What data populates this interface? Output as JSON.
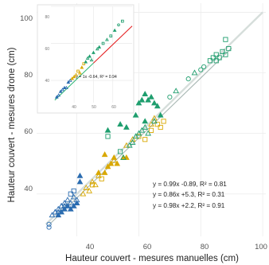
{
  "chart_data": [
    {
      "type": "scatter",
      "xlabel": "Hauteur couvert - mesures manuelles (cm)",
      "ylabel": "Hauteur couvert - mesures drone (cm)",
      "xlim": [
        27,
        101
      ],
      "ylim": [
        26,
        103
      ],
      "xticks": [
        "40",
        "60",
        "80",
        "100"
      ],
      "yticks": [
        "40",
        "60",
        "80",
        "100"
      ],
      "grid": true,
      "colors": {
        "blue": "#2b6cb0",
        "yellow": "#d9a800",
        "green": "#1f9e6e",
        "regression_line": "#a8b7b3",
        "one_to_one": "#d6dedb"
      },
      "equations": [
        "y = 0.99x -0.89, R² = 0.81",
        "y = 0.86x +5.3, R² = 0.31",
        "y = 0.98x +2.2, R² = 0.91"
      ],
      "series": [
        {
          "color": "#2b6cb0",
          "points": [
            {
              "x": 31,
              "y": 29,
              "m": "o"
            },
            {
              "x": 31,
              "y": 30,
              "m": "o"
            },
            {
              "x": 32,
              "y": 33,
              "m": "t"
            },
            {
              "x": 33,
              "y": 34,
              "m": "t"
            },
            {
              "x": 34,
              "y": 33,
              "m": "T"
            },
            {
              "x": 34,
              "y": 35,
              "m": "t"
            },
            {
              "x": 35,
              "y": 34,
              "m": "T"
            },
            {
              "x": 35,
              "y": 36,
              "m": "t"
            },
            {
              "x": 36,
              "y": 35,
              "m": "T"
            },
            {
              "x": 36,
              "y": 37,
              "m": "t"
            },
            {
              "x": 37,
              "y": 36,
              "m": "T"
            },
            {
              "x": 37,
              "y": 38,
              "m": "t"
            },
            {
              "x": 38,
              "y": 35,
              "m": "T"
            },
            {
              "x": 38,
              "y": 37,
              "m": "t"
            },
            {
              "x": 39,
              "y": 36,
              "m": "T"
            },
            {
              "x": 39,
              "y": 39,
              "m": "t"
            },
            {
              "x": 40,
              "y": 37,
              "m": "T"
            },
            {
              "x": 40,
              "y": 38,
              "m": "t"
            },
            {
              "x": 33,
              "y": 34,
              "m": "t"
            },
            {
              "x": 34,
              "y": 34,
              "m": "t"
            },
            {
              "x": 35,
              "y": 36,
              "m": "t"
            },
            {
              "x": 36,
              "y": 36,
              "m": "t"
            },
            {
              "x": 38,
              "y": 40,
              "m": "s"
            },
            {
              "x": 39,
              "y": 41,
              "m": "s"
            },
            {
              "x": 41,
              "y": 44,
              "m": "T"
            },
            {
              "x": 41,
              "y": 46,
              "m": "T"
            }
          ]
        },
        {
          "color": "#d9a800",
          "points": [
            {
              "x": 42,
              "y": 40,
              "m": "t"
            },
            {
              "x": 43,
              "y": 42,
              "m": "t"
            },
            {
              "x": 44,
              "y": 41,
              "m": "t"
            },
            {
              "x": 45,
              "y": 43,
              "m": "s"
            },
            {
              "x": 45,
              "y": 44,
              "m": "t"
            },
            {
              "x": 46,
              "y": 43,
              "m": "t"
            },
            {
              "x": 47,
              "y": 47,
              "m": "T"
            },
            {
              "x": 47,
              "y": 46,
              "m": "t"
            },
            {
              "x": 48,
              "y": 45,
              "m": "s"
            },
            {
              "x": 49,
              "y": 47,
              "m": "T"
            },
            {
              "x": 50,
              "y": 49,
              "m": "T"
            },
            {
              "x": 51,
              "y": 50,
              "m": "T"
            },
            {
              "x": 52,
              "y": 52,
              "m": "T"
            },
            {
              "x": 52,
              "y": 51,
              "m": "t"
            },
            {
              "x": 53,
              "y": 50,
              "m": "T"
            },
            {
              "x": 55,
              "y": 52,
              "m": "T"
            },
            {
              "x": 56,
              "y": 52,
              "m": "T"
            },
            {
              "x": 49,
              "y": 53,
              "m": "T"
            },
            {
              "x": 56,
              "y": 56,
              "m": "t"
            },
            {
              "x": 58,
              "y": 58,
              "m": "t"
            },
            {
              "x": 60,
              "y": 59,
              "m": "s"
            },
            {
              "x": 62,
              "y": 58,
              "m": "s"
            },
            {
              "x": 64,
              "y": 61,
              "m": "s"
            },
            {
              "x": 66,
              "y": 63,
              "m": "s"
            },
            {
              "x": 67,
              "y": 62,
              "m": "s"
            },
            {
              "x": 68,
              "y": 64,
              "m": "s"
            },
            {
              "x": 65,
              "y": 65,
              "m": "t"
            },
            {
              "x": 64,
              "y": 63,
              "m": "t"
            }
          ]
        },
        {
          "color": "#1f9e6e",
          "points": [
            {
              "x": 50,
              "y": 61,
              "m": "T"
            },
            {
              "x": 54,
              "y": 63,
              "m": "T"
            },
            {
              "x": 56,
              "y": 62,
              "m": "T"
            },
            {
              "x": 57,
              "y": 69,
              "m": "T"
            },
            {
              "x": 59,
              "y": 66,
              "m": "T"
            },
            {
              "x": 60,
              "y": 70,
              "m": "T"
            },
            {
              "x": 61,
              "y": 71,
              "m": "T"
            },
            {
              "x": 62,
              "y": 73,
              "m": "T"
            },
            {
              "x": 63,
              "y": 71,
              "m": "T"
            },
            {
              "x": 64,
              "y": 72,
              "m": "T"
            },
            {
              "x": 65,
              "y": 70,
              "m": "T"
            },
            {
              "x": 66,
              "y": 69,
              "m": "T"
            },
            {
              "x": 57,
              "y": 56,
              "m": "t"
            },
            {
              "x": 58,
              "y": 57,
              "m": "t"
            },
            {
              "x": 59,
              "y": 59,
              "m": "t"
            },
            {
              "x": 60,
              "y": 60,
              "m": "t"
            },
            {
              "x": 61,
              "y": 61,
              "m": "t"
            },
            {
              "x": 62,
              "y": 62,
              "m": "t"
            },
            {
              "x": 63,
              "y": 60,
              "m": "t"
            },
            {
              "x": 65,
              "y": 64,
              "m": "t"
            },
            {
              "x": 67,
              "y": 66,
              "m": "T"
            },
            {
              "x": 62,
              "y": 64,
              "m": "T"
            },
            {
              "x": 55,
              "y": 52,
              "m": "t"
            },
            {
              "x": 54,
              "y": 54,
              "m": "s"
            },
            {
              "x": 50,
              "y": 59,
              "m": "s"
            },
            {
              "x": 70,
              "y": 72,
              "m": "o"
            },
            {
              "x": 72,
              "y": 74,
              "m": "t"
            },
            {
              "x": 76,
              "y": 78,
              "m": "o"
            },
            {
              "x": 78,
              "y": 80,
              "m": "t"
            },
            {
              "x": 80,
              "y": 81,
              "m": "o"
            },
            {
              "x": 81,
              "y": 82,
              "m": "o"
            },
            {
              "x": 83,
              "y": 84,
              "m": "s"
            },
            {
              "x": 84,
              "y": 85,
              "m": "s"
            },
            {
              "x": 85,
              "y": 84,
              "m": "s"
            },
            {
              "x": 85,
              "y": 86,
              "m": "s"
            },
            {
              "x": 86,
              "y": 85,
              "m": "s"
            },
            {
              "x": 87,
              "y": 87,
              "m": "s"
            },
            {
              "x": 88,
              "y": 86,
              "m": "s"
            },
            {
              "x": 89,
              "y": 88,
              "m": "s"
            },
            {
              "x": 88,
              "y": 91,
              "m": "s"
            }
          ]
        }
      ]
    },
    {
      "type": "scatter",
      "xlim": [
        28,
        70
      ],
      "ylim": [
        28,
        80
      ],
      "xticks": [
        "40",
        "50",
        "60"
      ],
      "yticks": [
        "40",
        "60",
        "80"
      ],
      "grid": true,
      "equations": [
        "y = 1x -0.64, R² = 0.94"
      ],
      "colors": {
        "line_low": "#2bb673",
        "line_high": "#e41a1c"
      },
      "series": [
        {
          "color": "#2b6cb0",
          "points": [
            {
              "x": 31,
              "y": 31,
              "m": "T"
            },
            {
              "x": 32,
              "y": 32,
              "m": "t"
            },
            {
              "x": 33,
              "y": 34,
              "m": "T"
            },
            {
              "x": 34,
              "y": 35,
              "m": "t"
            },
            {
              "x": 35,
              "y": 36,
              "m": "T"
            },
            {
              "x": 36,
              "y": 36,
              "m": "t"
            },
            {
              "x": 37,
              "y": 39,
              "m": "T"
            },
            {
              "x": 38,
              "y": 40,
              "m": "t"
            }
          ]
        },
        {
          "color": "#d9a800",
          "points": [
            {
              "x": 39,
              "y": 41,
              "m": "T"
            },
            {
              "x": 40,
              "y": 42,
              "m": "T"
            },
            {
              "x": 41,
              "y": 43,
              "m": "t"
            },
            {
              "x": 42,
              "y": 45,
              "m": "s"
            },
            {
              "x": 43,
              "y": 44,
              "m": "t"
            },
            {
              "x": 44,
              "y": 47,
              "m": "T"
            },
            {
              "x": 45,
              "y": 49,
              "m": "s"
            }
          ]
        },
        {
          "color": "#1f9e6e",
          "points": [
            {
              "x": 46,
              "y": 50,
              "m": "T"
            },
            {
              "x": 47,
              "y": 52,
              "m": "t"
            },
            {
              "x": 48,
              "y": 53,
              "m": "T"
            },
            {
              "x": 49,
              "y": 51,
              "m": "t"
            },
            {
              "x": 50,
              "y": 55,
              "m": "T"
            },
            {
              "x": 52,
              "y": 57,
              "m": "t"
            },
            {
              "x": 53,
              "y": 58,
              "m": "T"
            },
            {
              "x": 55,
              "y": 60,
              "m": "s"
            },
            {
              "x": 57,
              "y": 62,
              "m": "t"
            },
            {
              "x": 59,
              "y": 64,
              "m": "s"
            },
            {
              "x": 61,
              "y": 67,
              "m": "T"
            },
            {
              "x": 63,
              "y": 70,
              "m": "o"
            },
            {
              "x": 65,
              "y": 72,
              "m": "s"
            }
          ]
        }
      ]
    }
  ]
}
